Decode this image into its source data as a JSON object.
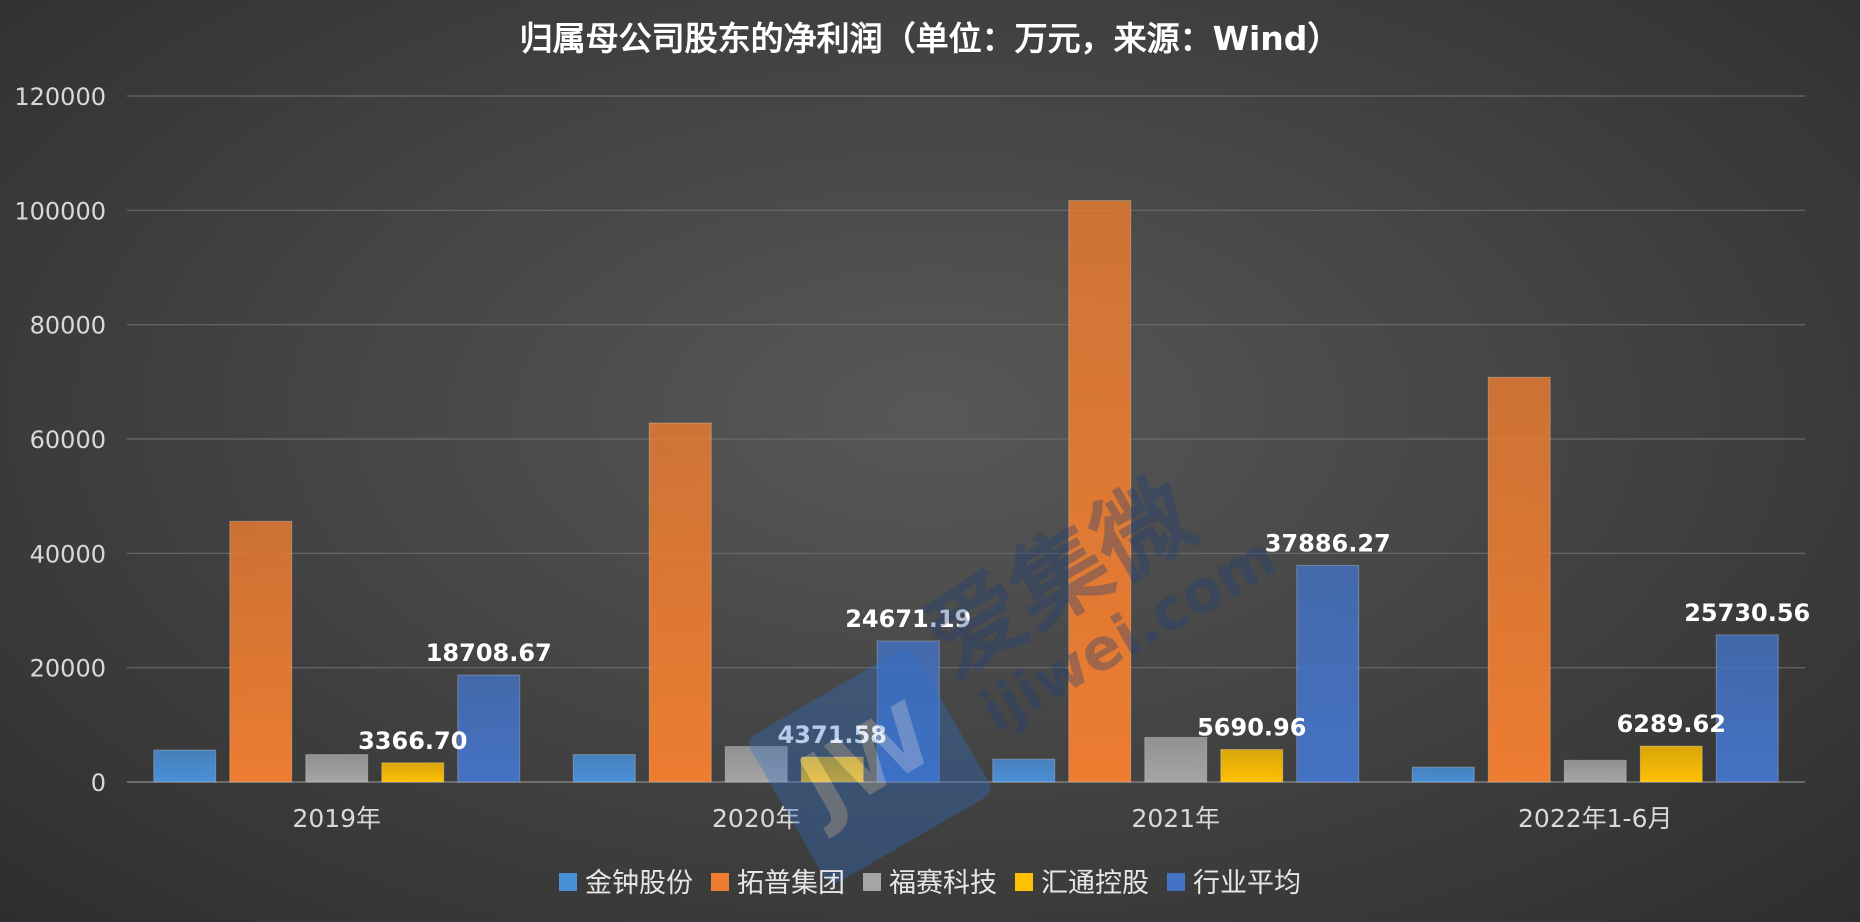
{
  "chart_data": {
    "type": "bar",
    "title": "归属母公司股东的净利润（单位：万元，来源：Wind）",
    "categories": [
      "2019年",
      "2020年",
      "2021年",
      "2022年1-6月"
    ],
    "ylim": [
      0,
      120000
    ],
    "yticks": [
      "0",
      "20000",
      "40000",
      "60000",
      "80000",
      "100000",
      "120000"
    ],
    "grid": true,
    "legend_position": "bottom",
    "series": [
      {
        "name": "金钟股份",
        "color": "#4a90d9",
        "values": [
          5600,
          4800,
          4000,
          2600
        ],
        "labels": [
          "",
          "",
          "",
          ""
        ]
      },
      {
        "name": "拓普集团",
        "color": "#ed7d31",
        "values": [
          45600,
          62800,
          101700,
          70800
        ],
        "labels": [
          "",
          "",
          "",
          ""
        ]
      },
      {
        "name": "福赛科技",
        "color": "#a5a5a5",
        "values": [
          4800,
          6200,
          7800,
          3800
        ],
        "labels": [
          "",
          "",
          "",
          ""
        ]
      },
      {
        "name": "汇通控股",
        "color": "#ffc000",
        "values": [
          3366.7,
          4371.58,
          5690.96,
          6289.62
        ],
        "labels": [
          "3366.70",
          "4371.58",
          "5690.96",
          "6289.62"
        ]
      },
      {
        "name": "行业平均",
        "color": "#4472c4",
        "values": [
          18708.67,
          24671.19,
          37886.27,
          25730.56
        ],
        "labels": [
          "18708.67",
          "24671.19",
          "37886.27",
          "25730.56"
        ]
      }
    ],
    "watermark": "爱集微 ijiwei.com"
  }
}
